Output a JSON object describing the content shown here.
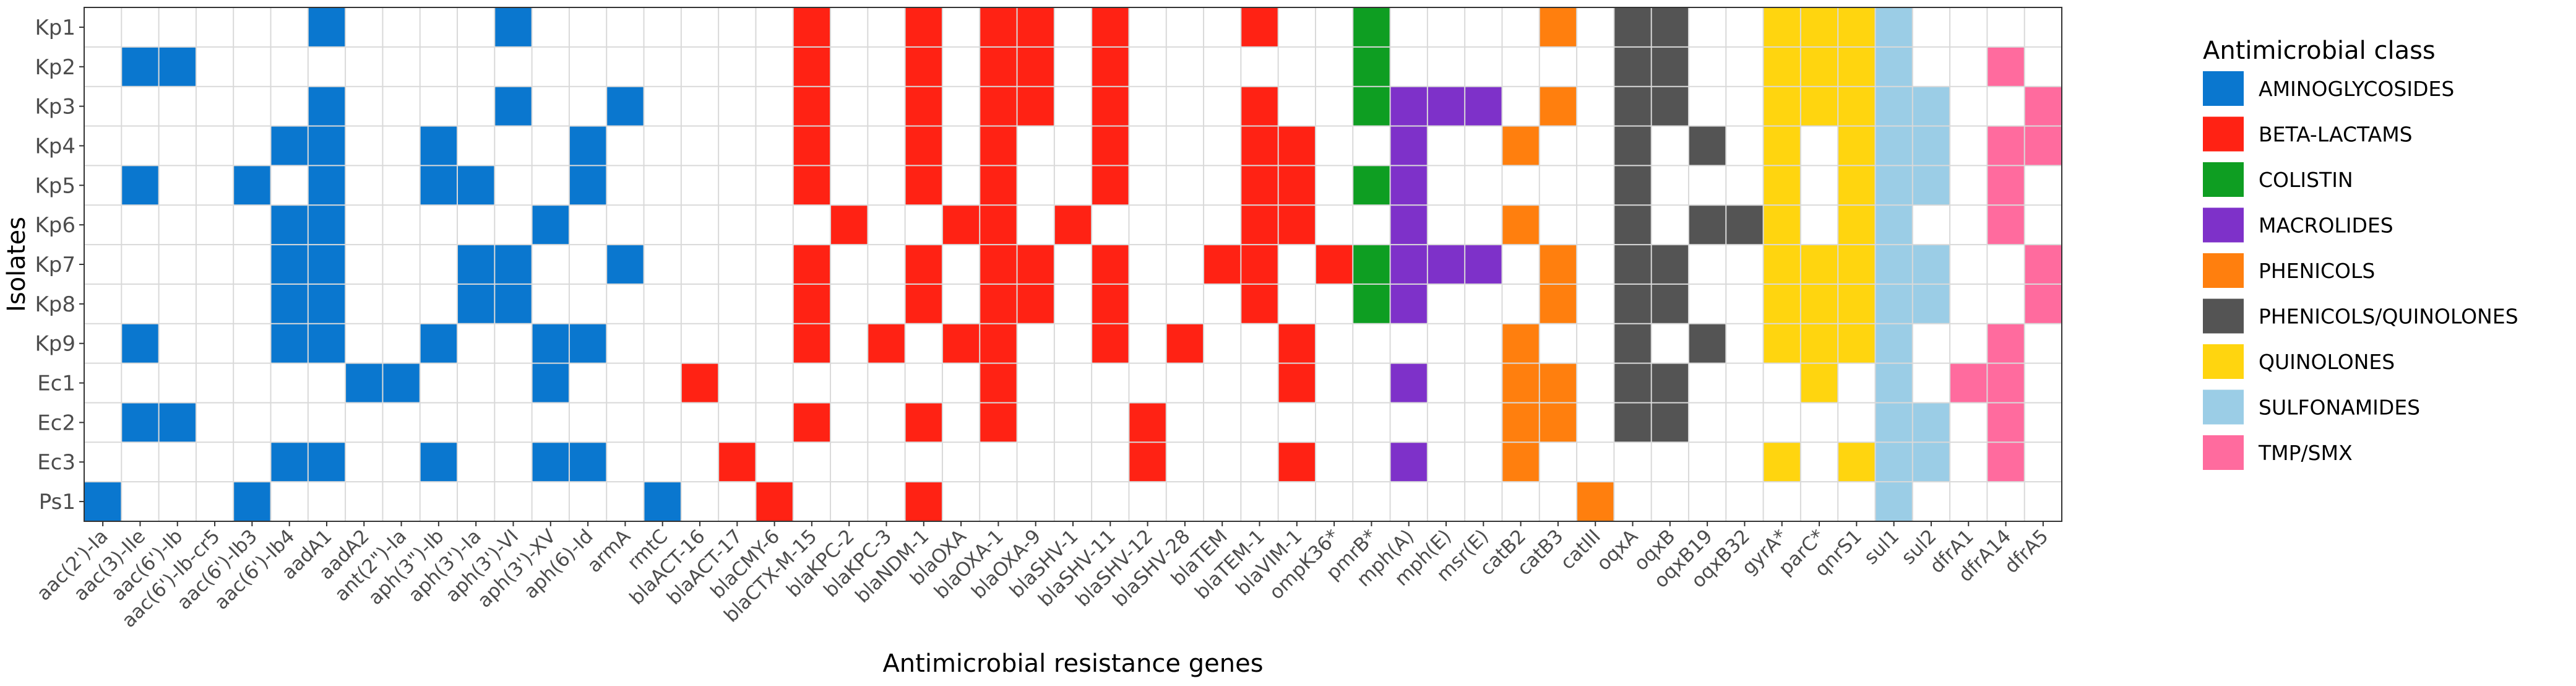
{
  "chart_data": {
    "type": "heatmap",
    "title": "",
    "xlabel": "Antimicrobial resistance genes",
    "ylabel": "Isolates",
    "legend_title": "Antimicrobial class",
    "legend_position": "right",
    "classes": [
      {
        "name": "AMINOGLYCOSIDES",
        "color": "#0A77CF"
      },
      {
        "name": "BETA-LACTAMS",
        "color": "#FF2214"
      },
      {
        "name": "COLISTIN",
        "color": "#0E9E22"
      },
      {
        "name": "MACROLIDES",
        "color": "#7E31C9"
      },
      {
        "name": "PHENICOLS",
        "color": "#FF7F0E"
      },
      {
        "name": "PHENICOLS/QUINOLONES",
        "color": "#545454"
      },
      {
        "name": "QUINOLONES",
        "color": "#FFD50F"
      },
      {
        "name": "SULFONAMIDES",
        "color": "#9BCDE6"
      },
      {
        "name": "TMP/SMX",
        "color": "#FF6B9E"
      }
    ],
    "genes": [
      {
        "name": "aac(2')-Ia",
        "class": 0
      },
      {
        "name": "aac(3)-IIe",
        "class": 0
      },
      {
        "name": "aac(6')-Ib",
        "class": 0
      },
      {
        "name": "aac(6')-Ib-cr5",
        "class": 0
      },
      {
        "name": "aac(6')-Ib3",
        "class": 0
      },
      {
        "name": "aac(6')-Ib4",
        "class": 0
      },
      {
        "name": "aadA1",
        "class": 0
      },
      {
        "name": "aadA2",
        "class": 0
      },
      {
        "name": "ant(2\")-Ia",
        "class": 0
      },
      {
        "name": "aph(3\")-Ib",
        "class": 0
      },
      {
        "name": "aph(3')-Ia",
        "class": 0
      },
      {
        "name": "aph(3')-VI",
        "class": 0
      },
      {
        "name": "aph(3')-XV",
        "class": 0
      },
      {
        "name": "aph(6)-Id",
        "class": 0
      },
      {
        "name": "armA",
        "class": 0
      },
      {
        "name": "rmtC",
        "class": 0
      },
      {
        "name": "blaACT-16",
        "class": 1
      },
      {
        "name": "blaACT-17",
        "class": 1
      },
      {
        "name": "blaCMY-6",
        "class": 1
      },
      {
        "name": "blaCTX-M-15",
        "class": 1
      },
      {
        "name": "blaKPC-2",
        "class": 1
      },
      {
        "name": "blaKPC-3",
        "class": 1
      },
      {
        "name": "blaNDM-1",
        "class": 1
      },
      {
        "name": "blaOXA",
        "class": 1
      },
      {
        "name": "blaOXA-1",
        "class": 1
      },
      {
        "name": "blaOXA-9",
        "class": 1
      },
      {
        "name": "blaSHV-1",
        "class": 1
      },
      {
        "name": "blaSHV-11",
        "class": 1
      },
      {
        "name": "blaSHV-12",
        "class": 1
      },
      {
        "name": "blaSHV-28",
        "class": 1
      },
      {
        "name": "blaTEM",
        "class": 1
      },
      {
        "name": "blaTEM-1",
        "class": 1
      },
      {
        "name": "blaVIM-1",
        "class": 1
      },
      {
        "name": "ompK36*",
        "class": 1
      },
      {
        "name": "pmrB*",
        "class": 2
      },
      {
        "name": "mph(A)",
        "class": 3
      },
      {
        "name": "mph(E)",
        "class": 3
      },
      {
        "name": "msr(E)",
        "class": 3
      },
      {
        "name": "catB2",
        "class": 4
      },
      {
        "name": "catB3",
        "class": 4
      },
      {
        "name": "catIII",
        "class": 4
      },
      {
        "name": "oqxA",
        "class": 5
      },
      {
        "name": "oqxB",
        "class": 5
      },
      {
        "name": "oqxB19",
        "class": 5
      },
      {
        "name": "oqxB32",
        "class": 5
      },
      {
        "name": "gyrA*",
        "class": 6
      },
      {
        "name": "parC*",
        "class": 6
      },
      {
        "name": "qnrS1",
        "class": 6
      },
      {
        "name": "sul1",
        "class": 7
      },
      {
        "name": "sul2",
        "class": 7
      },
      {
        "name": "dfrA1",
        "class": 8
      },
      {
        "name": "dfrA14",
        "class": 8
      },
      {
        "name": "dfrA5",
        "class": 8
      }
    ],
    "isolates": [
      {
        "name": "Kp1",
        "genes": [
          6,
          11,
          19,
          22,
          24,
          25,
          27,
          31,
          34,
          39,
          41,
          42,
          45,
          46,
          47,
          48
        ]
      },
      {
        "name": "Kp2",
        "genes": [
          1,
          2,
          19,
          22,
          24,
          25,
          27,
          34,
          41,
          42,
          45,
          46,
          47,
          48,
          51
        ]
      },
      {
        "name": "Kp3",
        "genes": [
          6,
          11,
          14,
          19,
          22,
          24,
          25,
          27,
          31,
          34,
          35,
          36,
          37,
          39,
          41,
          42,
          45,
          46,
          47,
          48,
          49,
          52
        ]
      },
      {
        "name": "Kp4",
        "genes": [
          5,
          6,
          9,
          13,
          19,
          22,
          24,
          27,
          31,
          32,
          35,
          38,
          41,
          43,
          45,
          47,
          48,
          49,
          51,
          52
        ]
      },
      {
        "name": "Kp5",
        "genes": [
          1,
          4,
          6,
          9,
          10,
          13,
          19,
          22,
          24,
          27,
          31,
          32,
          34,
          35,
          41,
          45,
          47,
          48,
          49,
          51
        ]
      },
      {
        "name": "Kp6",
        "genes": [
          5,
          6,
          12,
          20,
          23,
          24,
          26,
          31,
          32,
          35,
          38,
          41,
          43,
          44,
          45,
          47,
          48,
          51
        ]
      },
      {
        "name": "Kp7",
        "genes": [
          5,
          6,
          10,
          11,
          14,
          19,
          22,
          24,
          25,
          27,
          30,
          31,
          33,
          34,
          35,
          36,
          37,
          39,
          41,
          42,
          45,
          46,
          47,
          48,
          49,
          52
        ]
      },
      {
        "name": "Kp8",
        "genes": [
          5,
          6,
          10,
          11,
          19,
          22,
          24,
          25,
          27,
          31,
          34,
          35,
          39,
          41,
          42,
          45,
          46,
          47,
          48,
          49,
          52
        ]
      },
      {
        "name": "Kp9",
        "genes": [
          1,
          5,
          6,
          9,
          12,
          13,
          19,
          21,
          23,
          24,
          27,
          29,
          32,
          38,
          41,
          43,
          45,
          46,
          47,
          48,
          51
        ]
      },
      {
        "name": "Ec1",
        "genes": [
          7,
          8,
          12,
          16,
          24,
          32,
          35,
          38,
          39,
          41,
          42,
          46,
          48,
          50,
          51
        ]
      },
      {
        "name": "Ec2",
        "genes": [
          1,
          2,
          19,
          22,
          24,
          28,
          38,
          39,
          41,
          42,
          48,
          49,
          51
        ]
      },
      {
        "name": "Ec3",
        "genes": [
          5,
          6,
          9,
          12,
          13,
          17,
          28,
          32,
          35,
          38,
          45,
          47,
          48,
          49,
          51
        ]
      },
      {
        "name": "Ps1",
        "genes": [
          0,
          4,
          15,
          18,
          22,
          40,
          48
        ]
      }
    ]
  }
}
